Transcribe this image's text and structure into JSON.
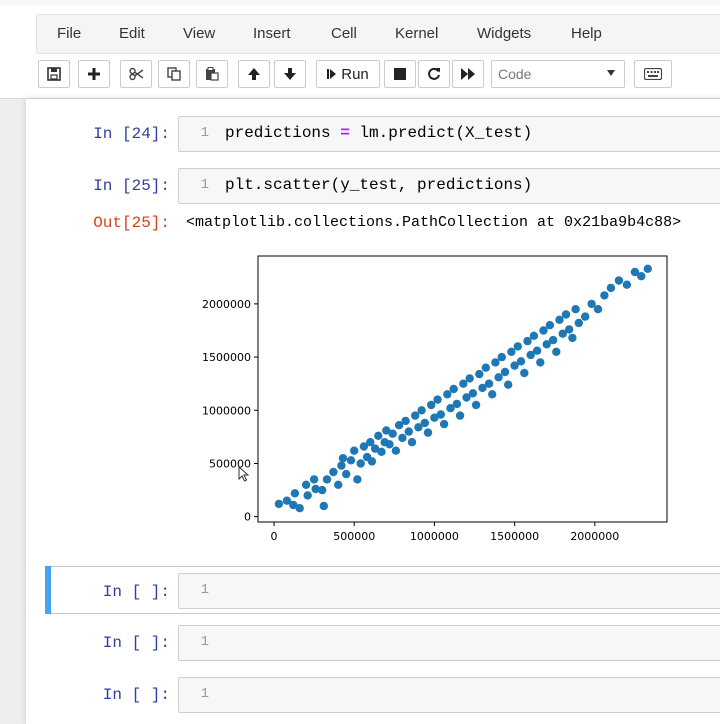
{
  "menu": [
    "File",
    "Edit",
    "View",
    "Insert",
    "Cell",
    "Kernel",
    "Widgets",
    "Help"
  ],
  "toolbar": {
    "run_label": "Run",
    "cell_type": "Code",
    "icons": [
      "save-icon",
      "plus-icon",
      "cut-icon",
      "copy-icon",
      "paste-icon",
      "arrow-up-icon",
      "arrow-down-icon",
      "run-icon",
      "stop-icon",
      "restart-icon",
      "fast-forward-icon",
      "keyboard-icon"
    ]
  },
  "cells": [
    {
      "prompt": "In [24]:",
      "line": "1",
      "code_lhs": "predictions ",
      "code_op": "=",
      "code_rhs": " lm.predict(X_test)"
    },
    {
      "prompt": "In [25]:",
      "line": "1",
      "code": "plt.scatter(y_test, predictions)",
      "out_prompt": "Out[25]:",
      "out_text": "<matplotlib.collections.PathCollection at 0x21ba9b4c88>"
    },
    {
      "prompt": "In [ ]:",
      "line": "1",
      "code": ""
    },
    {
      "prompt": "In [ ]:",
      "line": "1",
      "code": ""
    },
    {
      "prompt": "In [ ]:",
      "line": "1",
      "code": ""
    }
  ],
  "chart_data": {
    "type": "scatter",
    "title": "",
    "xlabel": "",
    "ylabel": "",
    "xlim": [
      -100000,
      2450000
    ],
    "ylim": [
      -50000,
      2450000
    ],
    "xticks": [
      0,
      500000,
      1000000,
      1500000,
      2000000
    ],
    "yticks": [
      0,
      500000,
      1000000,
      1500000,
      2000000
    ],
    "xtick_labels": [
      "0",
      "500000",
      "1000000",
      "1500000",
      "2000000"
    ],
    "ytick_labels": [
      "0",
      "500000",
      "1000000",
      "1500000",
      "2000000"
    ],
    "marker_color": "#1f77b4",
    "grid": false,
    "points": [
      [
        30000,
        120000
      ],
      [
        80000,
        150000
      ],
      [
        120000,
        110000
      ],
      [
        130000,
        220000
      ],
      [
        160000,
        80000
      ],
      [
        200000,
        300000
      ],
      [
        210000,
        200000
      ],
      [
        250000,
        350000
      ],
      [
        260000,
        260000
      ],
      [
        300000,
        250000
      ],
      [
        310000,
        100000
      ],
      [
        330000,
        350000
      ],
      [
        370000,
        420000
      ],
      [
        400000,
        300000
      ],
      [
        420000,
        480000
      ],
      [
        430000,
        550000
      ],
      [
        450000,
        400000
      ],
      [
        480000,
        530000
      ],
      [
        500000,
        620000
      ],
      [
        520000,
        350000
      ],
      [
        540000,
        500000
      ],
      [
        560000,
        660000
      ],
      [
        580000,
        560000
      ],
      [
        600000,
        700000
      ],
      [
        610000,
        520000
      ],
      [
        630000,
        640000
      ],
      [
        650000,
        760000
      ],
      [
        670000,
        610000
      ],
      [
        690000,
        700000
      ],
      [
        700000,
        810000
      ],
      [
        720000,
        680000
      ],
      [
        740000,
        780000
      ],
      [
        760000,
        620000
      ],
      [
        780000,
        860000
      ],
      [
        800000,
        740000
      ],
      [
        820000,
        900000
      ],
      [
        840000,
        800000
      ],
      [
        860000,
        700000
      ],
      [
        880000,
        950000
      ],
      [
        900000,
        840000
      ],
      [
        920000,
        1000000
      ],
      [
        940000,
        880000
      ],
      [
        960000,
        790000
      ],
      [
        980000,
        1050000
      ],
      [
        1000000,
        930000
      ],
      [
        1020000,
        1100000
      ],
      [
        1040000,
        960000
      ],
      [
        1060000,
        870000
      ],
      [
        1080000,
        1150000
      ],
      [
        1100000,
        1020000
      ],
      [
        1120000,
        1200000
      ],
      [
        1140000,
        1060000
      ],
      [
        1160000,
        950000
      ],
      [
        1180000,
        1250000
      ],
      [
        1200000,
        1120000
      ],
      [
        1220000,
        1300000
      ],
      [
        1240000,
        1160000
      ],
      [
        1260000,
        1050000
      ],
      [
        1280000,
        1340000
      ],
      [
        1300000,
        1210000
      ],
      [
        1320000,
        1400000
      ],
      [
        1340000,
        1250000
      ],
      [
        1360000,
        1150000
      ],
      [
        1380000,
        1450000
      ],
      [
        1400000,
        1310000
      ],
      [
        1420000,
        1500000
      ],
      [
        1440000,
        1360000
      ],
      [
        1460000,
        1240000
      ],
      [
        1480000,
        1550000
      ],
      [
        1500000,
        1420000
      ],
      [
        1520000,
        1600000
      ],
      [
        1540000,
        1460000
      ],
      [
        1560000,
        1350000
      ],
      [
        1580000,
        1650000
      ],
      [
        1600000,
        1520000
      ],
      [
        1620000,
        1700000
      ],
      [
        1640000,
        1560000
      ],
      [
        1660000,
        1450000
      ],
      [
        1680000,
        1750000
      ],
      [
        1700000,
        1620000
      ],
      [
        1720000,
        1800000
      ],
      [
        1740000,
        1660000
      ],
      [
        1760000,
        1550000
      ],
      [
        1780000,
        1850000
      ],
      [
        1800000,
        1720000
      ],
      [
        1820000,
        1900000
      ],
      [
        1840000,
        1760000
      ],
      [
        1860000,
        1680000
      ],
      [
        1880000,
        1950000
      ],
      [
        1900000,
        1820000
      ],
      [
        1940000,
        1880000
      ],
      [
        1980000,
        2000000
      ],
      [
        2020000,
        1950000
      ],
      [
        2060000,
        2080000
      ],
      [
        2100000,
        2150000
      ],
      [
        2150000,
        2220000
      ],
      [
        2200000,
        2180000
      ],
      [
        2250000,
        2300000
      ],
      [
        2290000,
        2260000
      ],
      [
        2330000,
        2330000
      ]
    ]
  }
}
